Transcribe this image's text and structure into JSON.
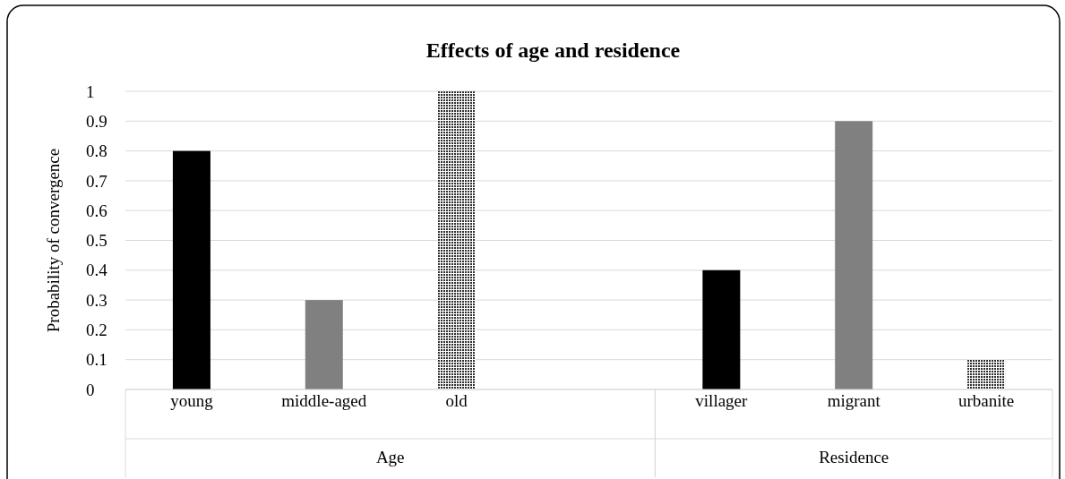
{
  "chart_data": {
    "type": "bar",
    "title": "Effects of age and residence",
    "ylabel": "Probability of convergence",
    "categories": [
      "young",
      "middle-aged",
      "old",
      null,
      "villager",
      "migrant",
      "urbanite"
    ],
    "values": [
      0.8,
      0.3,
      1,
      null,
      0.4,
      0.9,
      0.1
    ],
    "colors": [
      "#000000",
      "#808080",
      "#303030",
      null,
      "#000000",
      "#808080",
      "#303030"
    ],
    "ylim": [
      0,
      1
    ],
    "yticks": [
      0,
      0.1,
      0.2,
      0.3,
      0.4,
      0.5,
      0.6,
      0.7,
      0.8,
      0.9,
      1
    ],
    "grid": "y",
    "annotations": [
      "Age",
      "Residence"
    ]
  }
}
